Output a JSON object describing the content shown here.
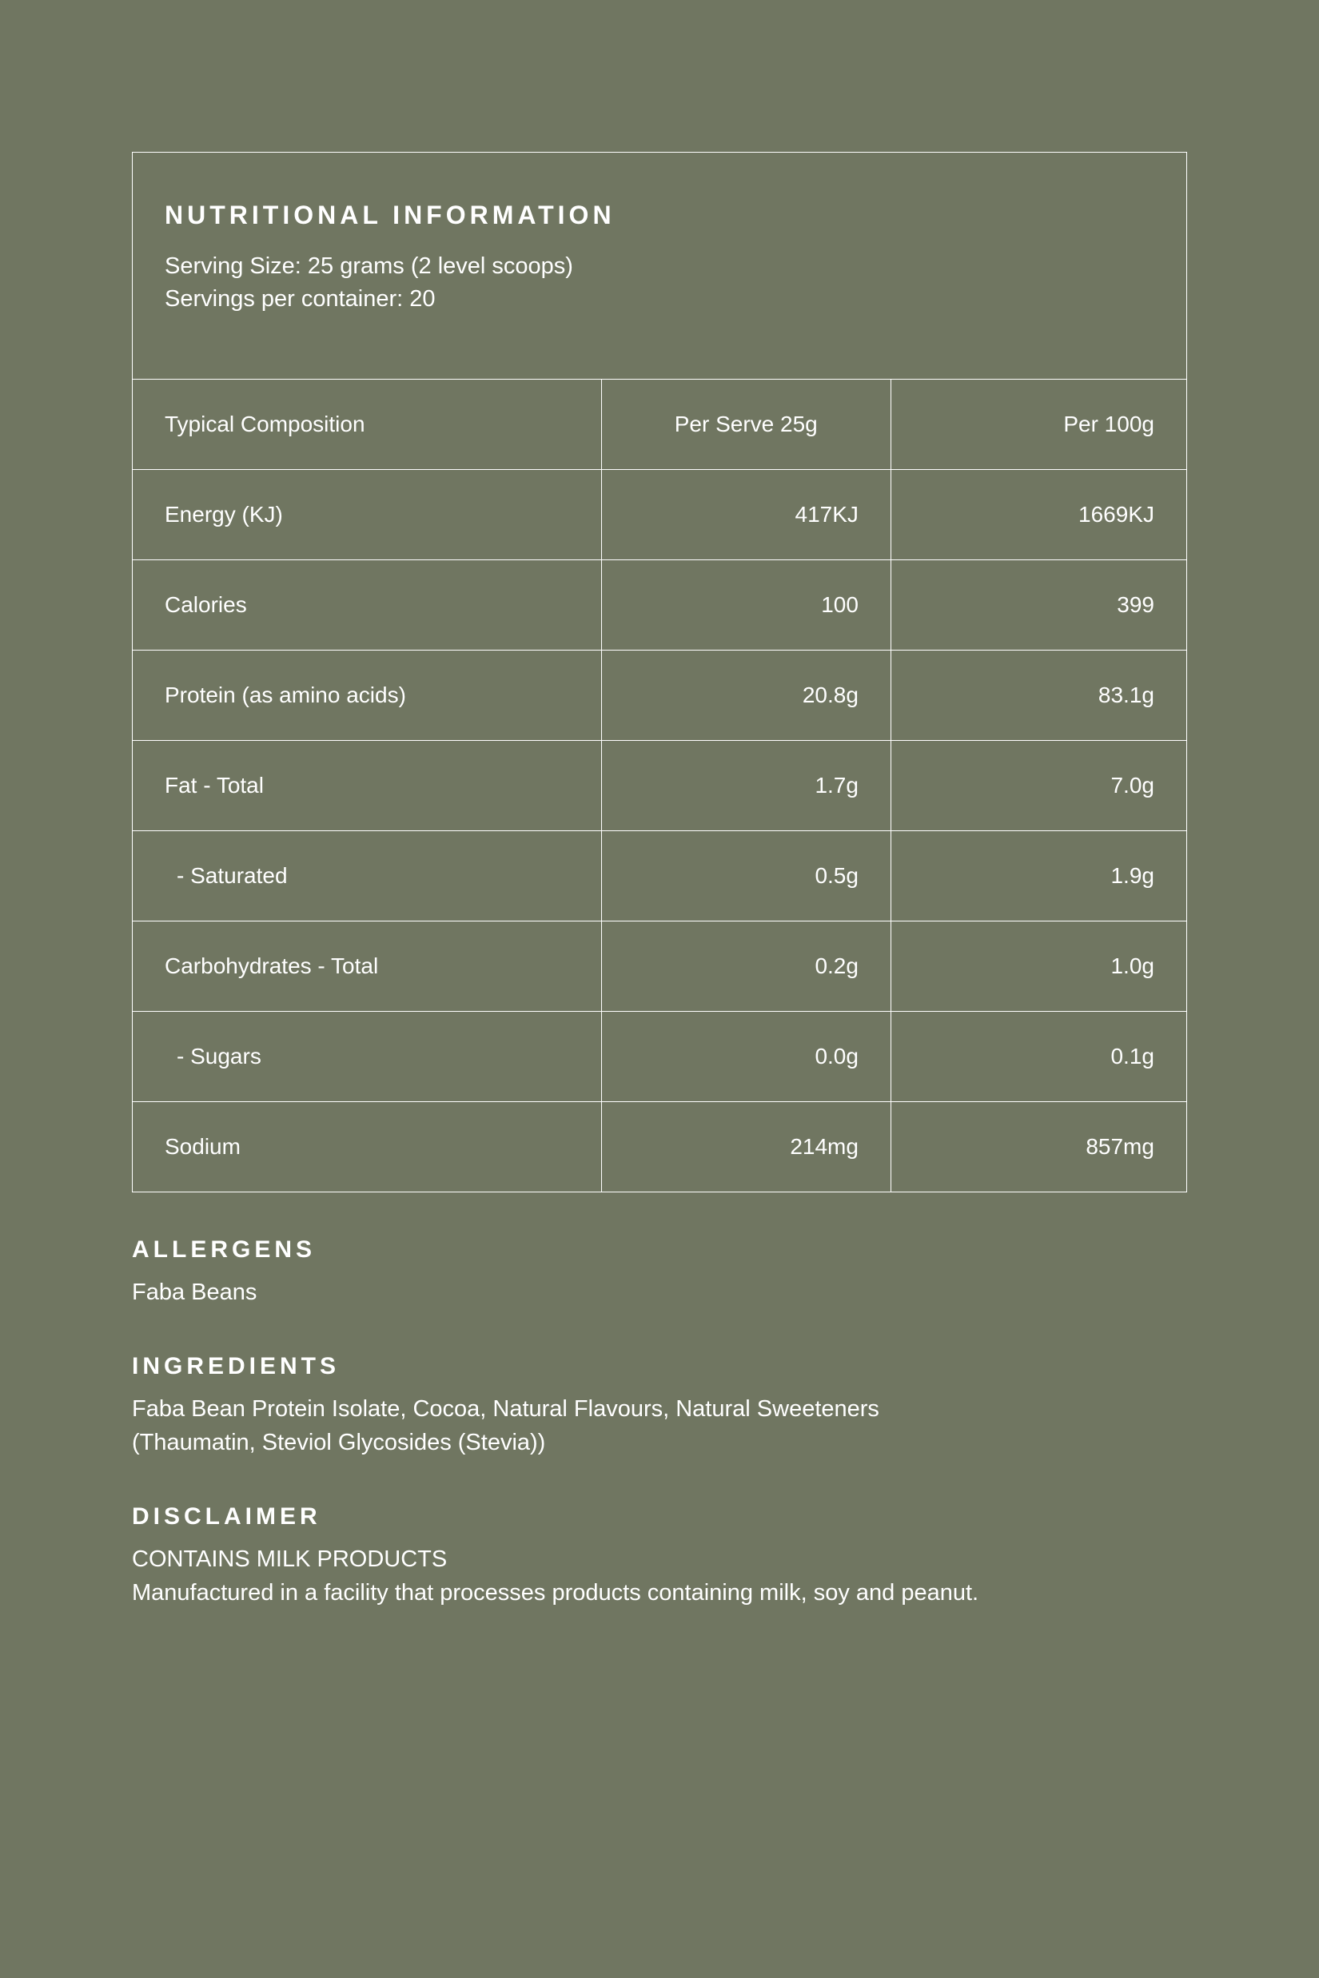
{
  "colors": {
    "background": "#707661",
    "text": "#ffffff",
    "border": "#ffffff"
  },
  "panel": {
    "title": "NUTRITIONAL INFORMATION",
    "serving_size": "Serving Size: 25 grams (2 level scoops)",
    "servings_per_container": "Servings per container: 20"
  },
  "table": {
    "columns": {
      "label": "Typical Composition",
      "per_serve": "Per Serve 25g",
      "per_100g": "Per 100g"
    },
    "rows": [
      {
        "label": "Energy (KJ)",
        "per_serve": "417KJ",
        "per_100g": "1669KJ",
        "indent": false
      },
      {
        "label": "Calories",
        "per_serve": "100",
        "per_100g": "399",
        "indent": false
      },
      {
        "label": "Protein (as amino acids)",
        "per_serve": "20.8g",
        "per_100g": "83.1g",
        "indent": false
      },
      {
        "label": "Fat - Total",
        "per_serve": "1.7g",
        "per_100g": "7.0g",
        "indent": false
      },
      {
        "label": " - Saturated",
        "per_serve": "0.5g",
        "per_100g": "1.9g",
        "indent": true
      },
      {
        "label": "Carbohydrates - Total",
        "per_serve": "0.2g",
        "per_100g": "1.0g",
        "indent": false
      },
      {
        "label": " - Sugars",
        "per_serve": "0.0g",
        "per_100g": "0.1g",
        "indent": true
      },
      {
        "label": "Sodium",
        "per_serve": "214mg",
        "per_100g": "857mg",
        "indent": false
      }
    ]
  },
  "allergens": {
    "heading": "ALLERGENS",
    "body": "Faba Beans"
  },
  "ingredients": {
    "heading": "INGREDIENTS",
    "body": "Faba Bean Protein Isolate, Cocoa, Natural Flavours, Natural Sweeteners (Thaumatin, Steviol Glycosides (Stevia))"
  },
  "disclaimer": {
    "heading": "DISCLAIMER",
    "line1": "CONTAINS MILK PRODUCTS",
    "line2": "Manufactured in a facility that processes products containing milk, soy and peanut."
  }
}
